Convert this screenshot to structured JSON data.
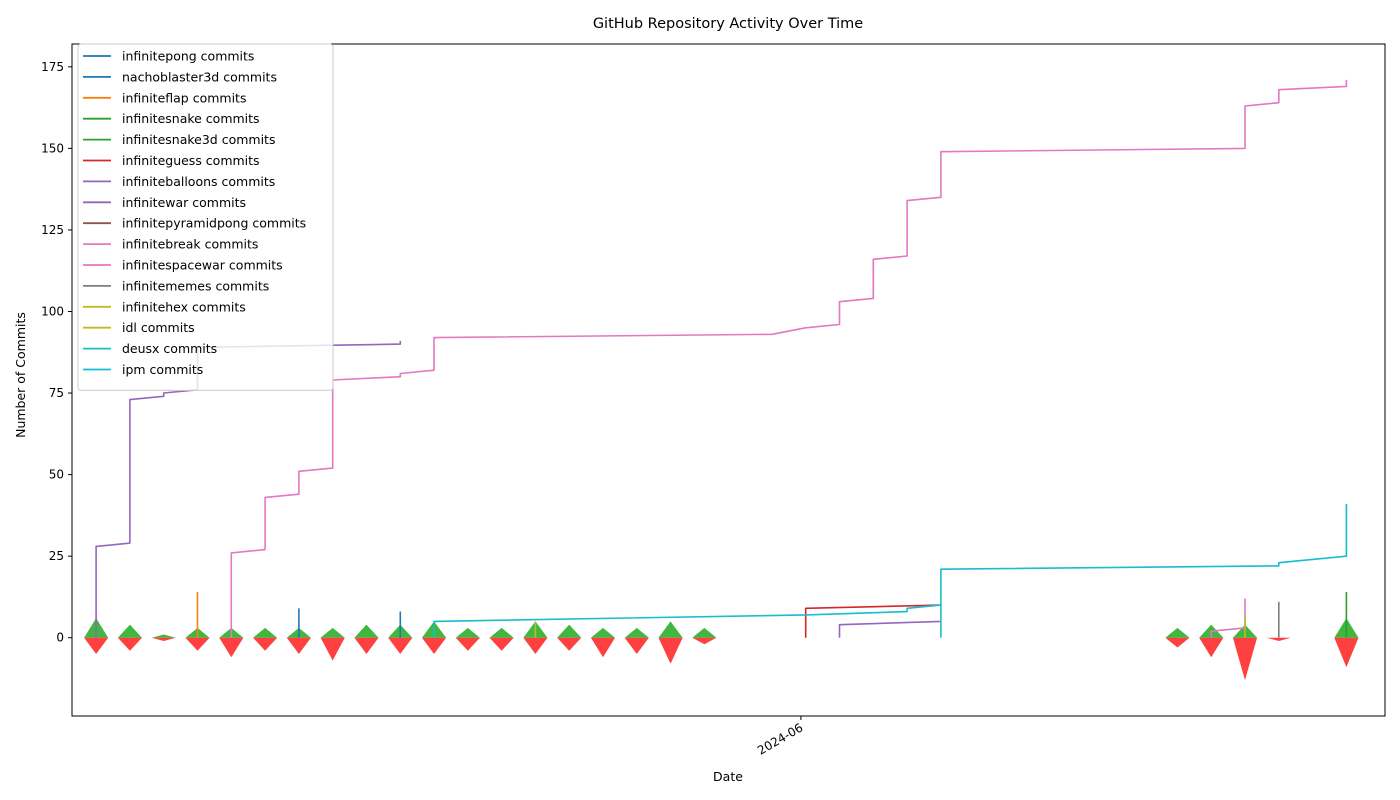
{
  "chart_data": {
    "type": "line",
    "title": "GitHub Repository Activity Over Time",
    "xlabel": "Date",
    "ylabel": "Number of Commits",
    "ylim": [
      -24,
      182
    ],
    "yticks": [
      0,
      25,
      50,
      75,
      100,
      125,
      150,
      175
    ],
    "xlim": [
      "2024-01-02",
      "2024-09-30"
    ],
    "xticks": [
      {
        "date": "2024-06-01",
        "label": "2024-06"
      }
    ],
    "grid": false,
    "legend_position": "top-left",
    "weeks": [
      "2024-01-07",
      "2024-01-14",
      "2024-01-21",
      "2024-01-28",
      "2024-02-04",
      "2024-02-11",
      "2024-02-18",
      "2024-02-25",
      "2024-03-03",
      "2024-03-10",
      "2024-03-17",
      "2024-03-24",
      "2024-03-31",
      "2024-04-07",
      "2024-04-14",
      "2024-04-21",
      "2024-04-28",
      "2024-05-05",
      "2024-05-12",
      "2024-05-19",
      "2024-05-26",
      "2024-06-02",
      "2024-06-09",
      "2024-06-16",
      "2024-06-23",
      "2024-06-30",
      "2024-07-07",
      "2024-07-14",
      "2024-07-21",
      "2024-07-28",
      "2024-08-04",
      "2024-08-11",
      "2024-08-18",
      "2024-08-25",
      "2024-09-01",
      "2024-09-08",
      "2024-09-15",
      "2024-09-22"
    ],
    "series": [
      {
        "name": "infinitepong commits",
        "color": "#1f77b4",
        "points": [
          [
            "2024-02-18",
            0
          ],
          [
            "2024-02-18",
            9
          ]
        ]
      },
      {
        "name": "nachoblaster3d commits",
        "color": "#1f77b4",
        "points": [
          [
            "2024-03-10",
            0
          ],
          [
            "2024-03-10",
            8
          ]
        ]
      },
      {
        "name": "infiniteflap commits",
        "color": "#ff7f0e",
        "points": [
          [
            "2024-01-28",
            0
          ],
          [
            "2024-01-28",
            14
          ]
        ]
      },
      {
        "name": "infinitesnake commits",
        "color": "#2ca02c",
        "points": [
          [
            "2024-01-07",
            0
          ],
          [
            "2024-01-07",
            6
          ]
        ]
      },
      {
        "name": "infinitesnake3d commits",
        "color": "#2ca02c",
        "points": [
          [
            "2024-09-22",
            0
          ],
          [
            "2024-09-22",
            14
          ]
        ]
      },
      {
        "name": "infiniteguess commits",
        "color": "#d62728",
        "points": [
          [
            "2024-06-02",
            0
          ],
          [
            "2024-06-02",
            9
          ],
          [
            "2024-06-30",
            10
          ]
        ]
      },
      {
        "name": "infiniteballoons commits",
        "color": "#9467bd",
        "points": [
          [
            "2024-01-07",
            0
          ],
          [
            "2024-01-07",
            28
          ],
          [
            "2024-01-14",
            29
          ],
          [
            "2024-01-14",
            73
          ],
          [
            "2024-01-21",
            74
          ],
          [
            "2024-01-21",
            75
          ],
          [
            "2024-01-28",
            76
          ],
          [
            "2024-01-28",
            89
          ],
          [
            "2024-03-10",
            90
          ],
          [
            "2024-03-10",
            91
          ]
        ]
      },
      {
        "name": "infinitewar commits",
        "color": "#9467bd",
        "points": [
          [
            "2024-06-09",
            0
          ],
          [
            "2024-06-09",
            4
          ],
          [
            "2024-06-30",
            5
          ]
        ]
      },
      {
        "name": "infinitepyramidpong commits",
        "color": "#8c564b",
        "points": [
          [
            "2024-08-25",
            0
          ],
          [
            "2024-08-25",
            2
          ]
        ]
      },
      {
        "name": "infinitebreak commits",
        "color": "#e377c2",
        "points": [
          [
            "2024-02-04",
            0
          ],
          [
            "2024-02-04",
            26
          ],
          [
            "2024-02-11",
            27
          ],
          [
            "2024-02-11",
            43
          ],
          [
            "2024-02-18",
            44
          ],
          [
            "2024-02-18",
            51
          ],
          [
            "2024-02-25",
            52
          ],
          [
            "2024-02-25",
            79
          ],
          [
            "2024-03-10",
            80
          ],
          [
            "2024-03-10",
            81
          ],
          [
            "2024-03-17",
            82
          ],
          [
            "2024-03-17",
            92
          ],
          [
            "2024-05-26",
            93
          ],
          [
            "2024-06-02",
            95
          ],
          [
            "2024-06-09",
            96
          ],
          [
            "2024-06-09",
            103
          ],
          [
            "2024-06-16",
            104
          ],
          [
            "2024-06-16",
            116
          ],
          [
            "2024-06-23",
            117
          ],
          [
            "2024-06-23",
            134
          ],
          [
            "2024-06-30",
            135
          ],
          [
            "2024-06-30",
            149
          ],
          [
            "2024-09-01",
            150
          ],
          [
            "2024-09-01",
            163
          ],
          [
            "2024-09-08",
            164
          ],
          [
            "2024-09-08",
            168
          ],
          [
            "2024-09-22",
            169
          ],
          [
            "2024-09-22",
            171
          ]
        ]
      },
      {
        "name": "infinitespacewar commits",
        "color": "#e377c2",
        "points": [
          [
            "2024-08-25",
            0
          ],
          [
            "2024-08-25",
            2
          ],
          [
            "2024-09-01",
            3
          ],
          [
            "2024-09-01",
            12
          ]
        ]
      },
      {
        "name": "infinitememes commits",
        "color": "#7f7f7f",
        "points": [
          [
            "2024-09-08",
            0
          ],
          [
            "2024-09-08",
            11
          ]
        ]
      },
      {
        "name": "infinitehex commits",
        "color": "#bcbd22",
        "points": [
          [
            "2024-04-07",
            0
          ],
          [
            "2024-04-07",
            5
          ]
        ]
      },
      {
        "name": "idl commits",
        "color": "#bcbd22",
        "points": [
          [
            "2024-09-01",
            0
          ],
          [
            "2024-09-01",
            7
          ]
        ]
      },
      {
        "name": "deusx commits",
        "color": "#17becf",
        "points": [
          [
            "2024-03-17",
            0
          ],
          [
            "2024-03-17",
            5
          ],
          [
            "2024-06-02",
            7
          ],
          [
            "2024-06-23",
            8
          ],
          [
            "2024-06-23",
            9
          ],
          [
            "2024-06-30",
            10
          ],
          [
            "2024-06-30",
            21
          ],
          [
            "2024-09-08",
            22
          ],
          [
            "2024-09-08",
            23
          ],
          [
            "2024-09-22",
            25
          ],
          [
            "2024-09-22",
            41
          ]
        ]
      },
      {
        "name": "ipm commits",
        "color": "#17becf",
        "points": [
          [
            "2024-06-30",
            0
          ],
          [
            "2024-06-30",
            10
          ]
        ]
      }
    ],
    "weekly_additions_color": "#00a000",
    "weekly_deletions_color": "#ff0000",
    "weekly_additions": [
      6,
      4,
      1,
      3,
      3,
      3,
      3,
      3,
      4,
      4,
      5,
      3,
      3,
      5,
      4,
      3,
      3,
      5,
      3,
      0,
      0,
      0,
      0,
      0,
      0,
      0,
      0,
      0,
      0,
      0,
      0,
      0,
      3,
      4,
      4,
      0,
      0,
      6
    ],
    "weekly_deletions": [
      -5,
      -4,
      -1,
      -4,
      -6,
      -4,
      -5,
      -7,
      -5,
      -5,
      -5,
      -4,
      -4,
      -5,
      -4,
      -6,
      -5,
      -8,
      -2,
      0,
      0,
      0,
      0,
      0,
      0,
      0,
      0,
      0,
      0,
      0,
      0,
      0,
      -3,
      -6,
      -13,
      -1,
      0,
      -9
    ]
  }
}
